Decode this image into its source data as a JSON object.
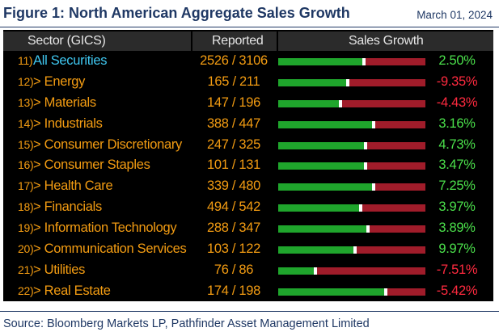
{
  "figure": {
    "title": "Figure 1: North American Aggregate Sales Growth",
    "date": "March 01, 2024",
    "source": "Source: Bloomberg Markets LP, Pathfinder Asset Management Limited"
  },
  "table": {
    "columns": {
      "sector": "Sector (GICS)",
      "reported": "Reported",
      "growth": "Sales Growth"
    },
    "colors": {
      "bar_green": "#1fa52c",
      "bar_red": "#a01c2a",
      "positive_text": "#4be04b",
      "negative_text": "#ff2a3f",
      "label_orange": "#f39c12",
      "label_cyan": "#3fc7f0"
    },
    "rows": [
      {
        "num": "11)",
        "name": "All Securities",
        "reported": "2526 / 3106",
        "growth": "2.50%",
        "bar_fraction": 0.57,
        "positive": true
      },
      {
        "num": "12)",
        "name": "> Energy",
        "reported": "165 / 211",
        "growth": "-9.35%",
        "bar_fraction": 0.46,
        "positive": false
      },
      {
        "num": "13)",
        "name": "> Materials",
        "reported": "147 / 196",
        "growth": "-4.43%",
        "bar_fraction": 0.41,
        "positive": false
      },
      {
        "num": "14)",
        "name": "> Industrials",
        "reported": "388 / 447",
        "growth": "3.16%",
        "bar_fraction": 0.64,
        "positive": true
      },
      {
        "num": "15)",
        "name": "> Consumer Discretionary",
        "reported": "247 / 325",
        "growth": "4.73%",
        "bar_fraction": 0.58,
        "positive": true
      },
      {
        "num": "16)",
        "name": "> Consumer Staples",
        "reported": "101 / 131",
        "growth": "3.47%",
        "bar_fraction": 0.58,
        "positive": true
      },
      {
        "num": "17)",
        "name": "> Health Care",
        "reported": "339 / 480",
        "growth": "7.25%",
        "bar_fraction": 0.64,
        "positive": true
      },
      {
        "num": "18)",
        "name": "> Financials",
        "reported": "494 / 542",
        "growth": "3.97%",
        "bar_fraction": 0.55,
        "positive": true
      },
      {
        "num": "19)",
        "name": "> Information Technology",
        "reported": "288 / 347",
        "growth": "3.89%",
        "bar_fraction": 0.6,
        "positive": true
      },
      {
        "num": "20)",
        "name": "> Communication Services",
        "reported": "103 / 122",
        "growth": "9.97%",
        "bar_fraction": 0.51,
        "positive": true
      },
      {
        "num": "21)",
        "name": "> Utilities",
        "reported": "76 / 86",
        "growth": "-7.51%",
        "bar_fraction": 0.24,
        "positive": false
      },
      {
        "num": "22)",
        "name": "> Real Estate",
        "reported": "174 / 198",
        "growth": "-5.42%",
        "bar_fraction": 0.72,
        "positive": false
      }
    ]
  }
}
